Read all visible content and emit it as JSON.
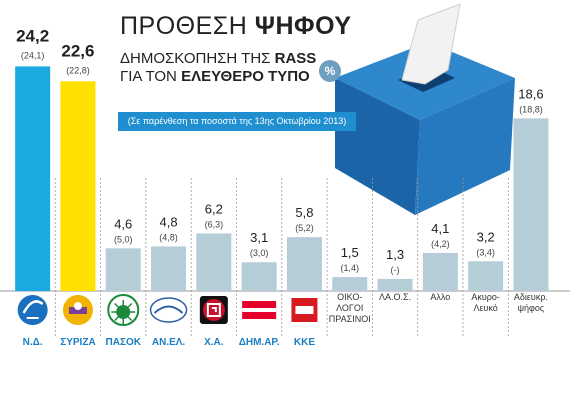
{
  "header": {
    "title_light": "ΠΡΟΘΕΣΗ",
    "title_bold": "ΨΗΦΟΥ",
    "line1_prefix": "ΔΗΜΟΣΚΟΠΗΣΗ ΤΗΣ",
    "line1_bold": "RASS",
    "line2_prefix": "ΓΙΑ ΤΟΝ",
    "line2_bold": "ΕΛΕΥΘΕΡΟ ΤΥΠΟ",
    "percent_symbol": "%",
    "note": "(Σε παρένθεση τα ποσοστά της 13ης Οκτωβρίου 2013)"
  },
  "colors": {
    "nd": "#1aa9e1",
    "syriza": "#ffe000",
    "other": "#b4cdd7",
    "note_bg": "#1f8fd0",
    "ballot_box": "#1f6fb4"
  },
  "logos": [
    "nd-logo",
    "syriza-logo",
    "pasok-logo",
    "anel-logo",
    "xa-logo",
    "dimar-logo",
    "kke-logo"
  ],
  "chart_data": {
    "type": "bar",
    "title": "ΠΡΟΘΕΣΗ ΨΗΦΟΥ",
    "categories": [
      "Ν.Δ.",
      "ΣΥΡΙΖΑ",
      "ΠΑΣΟΚ",
      "ΑΝ.ΕΛ.",
      "Χ.Α.",
      "ΔΗΜ.ΑΡ.",
      "ΚΚΕ",
      "ΟΙΚΟ-ΛΟΓΟΙ ΠΡΑΣΙΝΟΙ",
      "ΛΑ.Ο.Σ.",
      "Αλλο",
      "Ακυρο-Λευκό",
      "Αδιευκρ. ψήφος"
    ],
    "category_lines": [
      [
        "Ν.Δ."
      ],
      [
        "ΣΥΡΙΖΑ"
      ],
      [
        "ΠΑΣΟΚ"
      ],
      [
        "ΑΝ.ΕΛ."
      ],
      [
        "Χ.Α."
      ],
      [
        "ΔΗΜ.ΑΡ."
      ],
      [
        "ΚΚΕ"
      ],
      [
        "ΟΙΚΟ-",
        "ΛΟΓΟΙ",
        "ΠΡΑΣΙΝΟΙ"
      ],
      [
        "ΛΑ.Ο.Σ."
      ],
      [
        "Αλλο"
      ],
      [
        "Ακυρο-",
        "Λευκό"
      ],
      [
        "Αδιευκρ.",
        "ψήφος"
      ]
    ],
    "series": [
      {
        "name": "current",
        "values": [
          24.2,
          22.6,
          4.6,
          4.8,
          6.2,
          3.1,
          5.8,
          1.5,
          1.3,
          4.1,
          3.2,
          18.6
        ],
        "labels": [
          "24,2",
          "22,6",
          "4,6",
          "4,8",
          "6,2",
          "3,1",
          "5,8",
          "1,5",
          "1,3",
          "4,1",
          "3,2",
          "18,6"
        ]
      },
      {
        "name": "previous",
        "values": [
          24.1,
          22.8,
          5.0,
          4.8,
          6.3,
          3.0,
          5.2,
          1.4,
          null,
          4.2,
          3.4,
          18.8
        ],
        "labels": [
          "(24,1)",
          "(22,8)",
          "(5,0)",
          "(4,8)",
          "(6,3)",
          "(3,0)",
          "(5,2)",
          "(1,4)",
          "(-)",
          "(4,2)",
          "(3,4)",
          "(18,8)"
        ]
      }
    ],
    "ylim": [
      0,
      25
    ],
    "grid": false,
    "legend": "none"
  }
}
